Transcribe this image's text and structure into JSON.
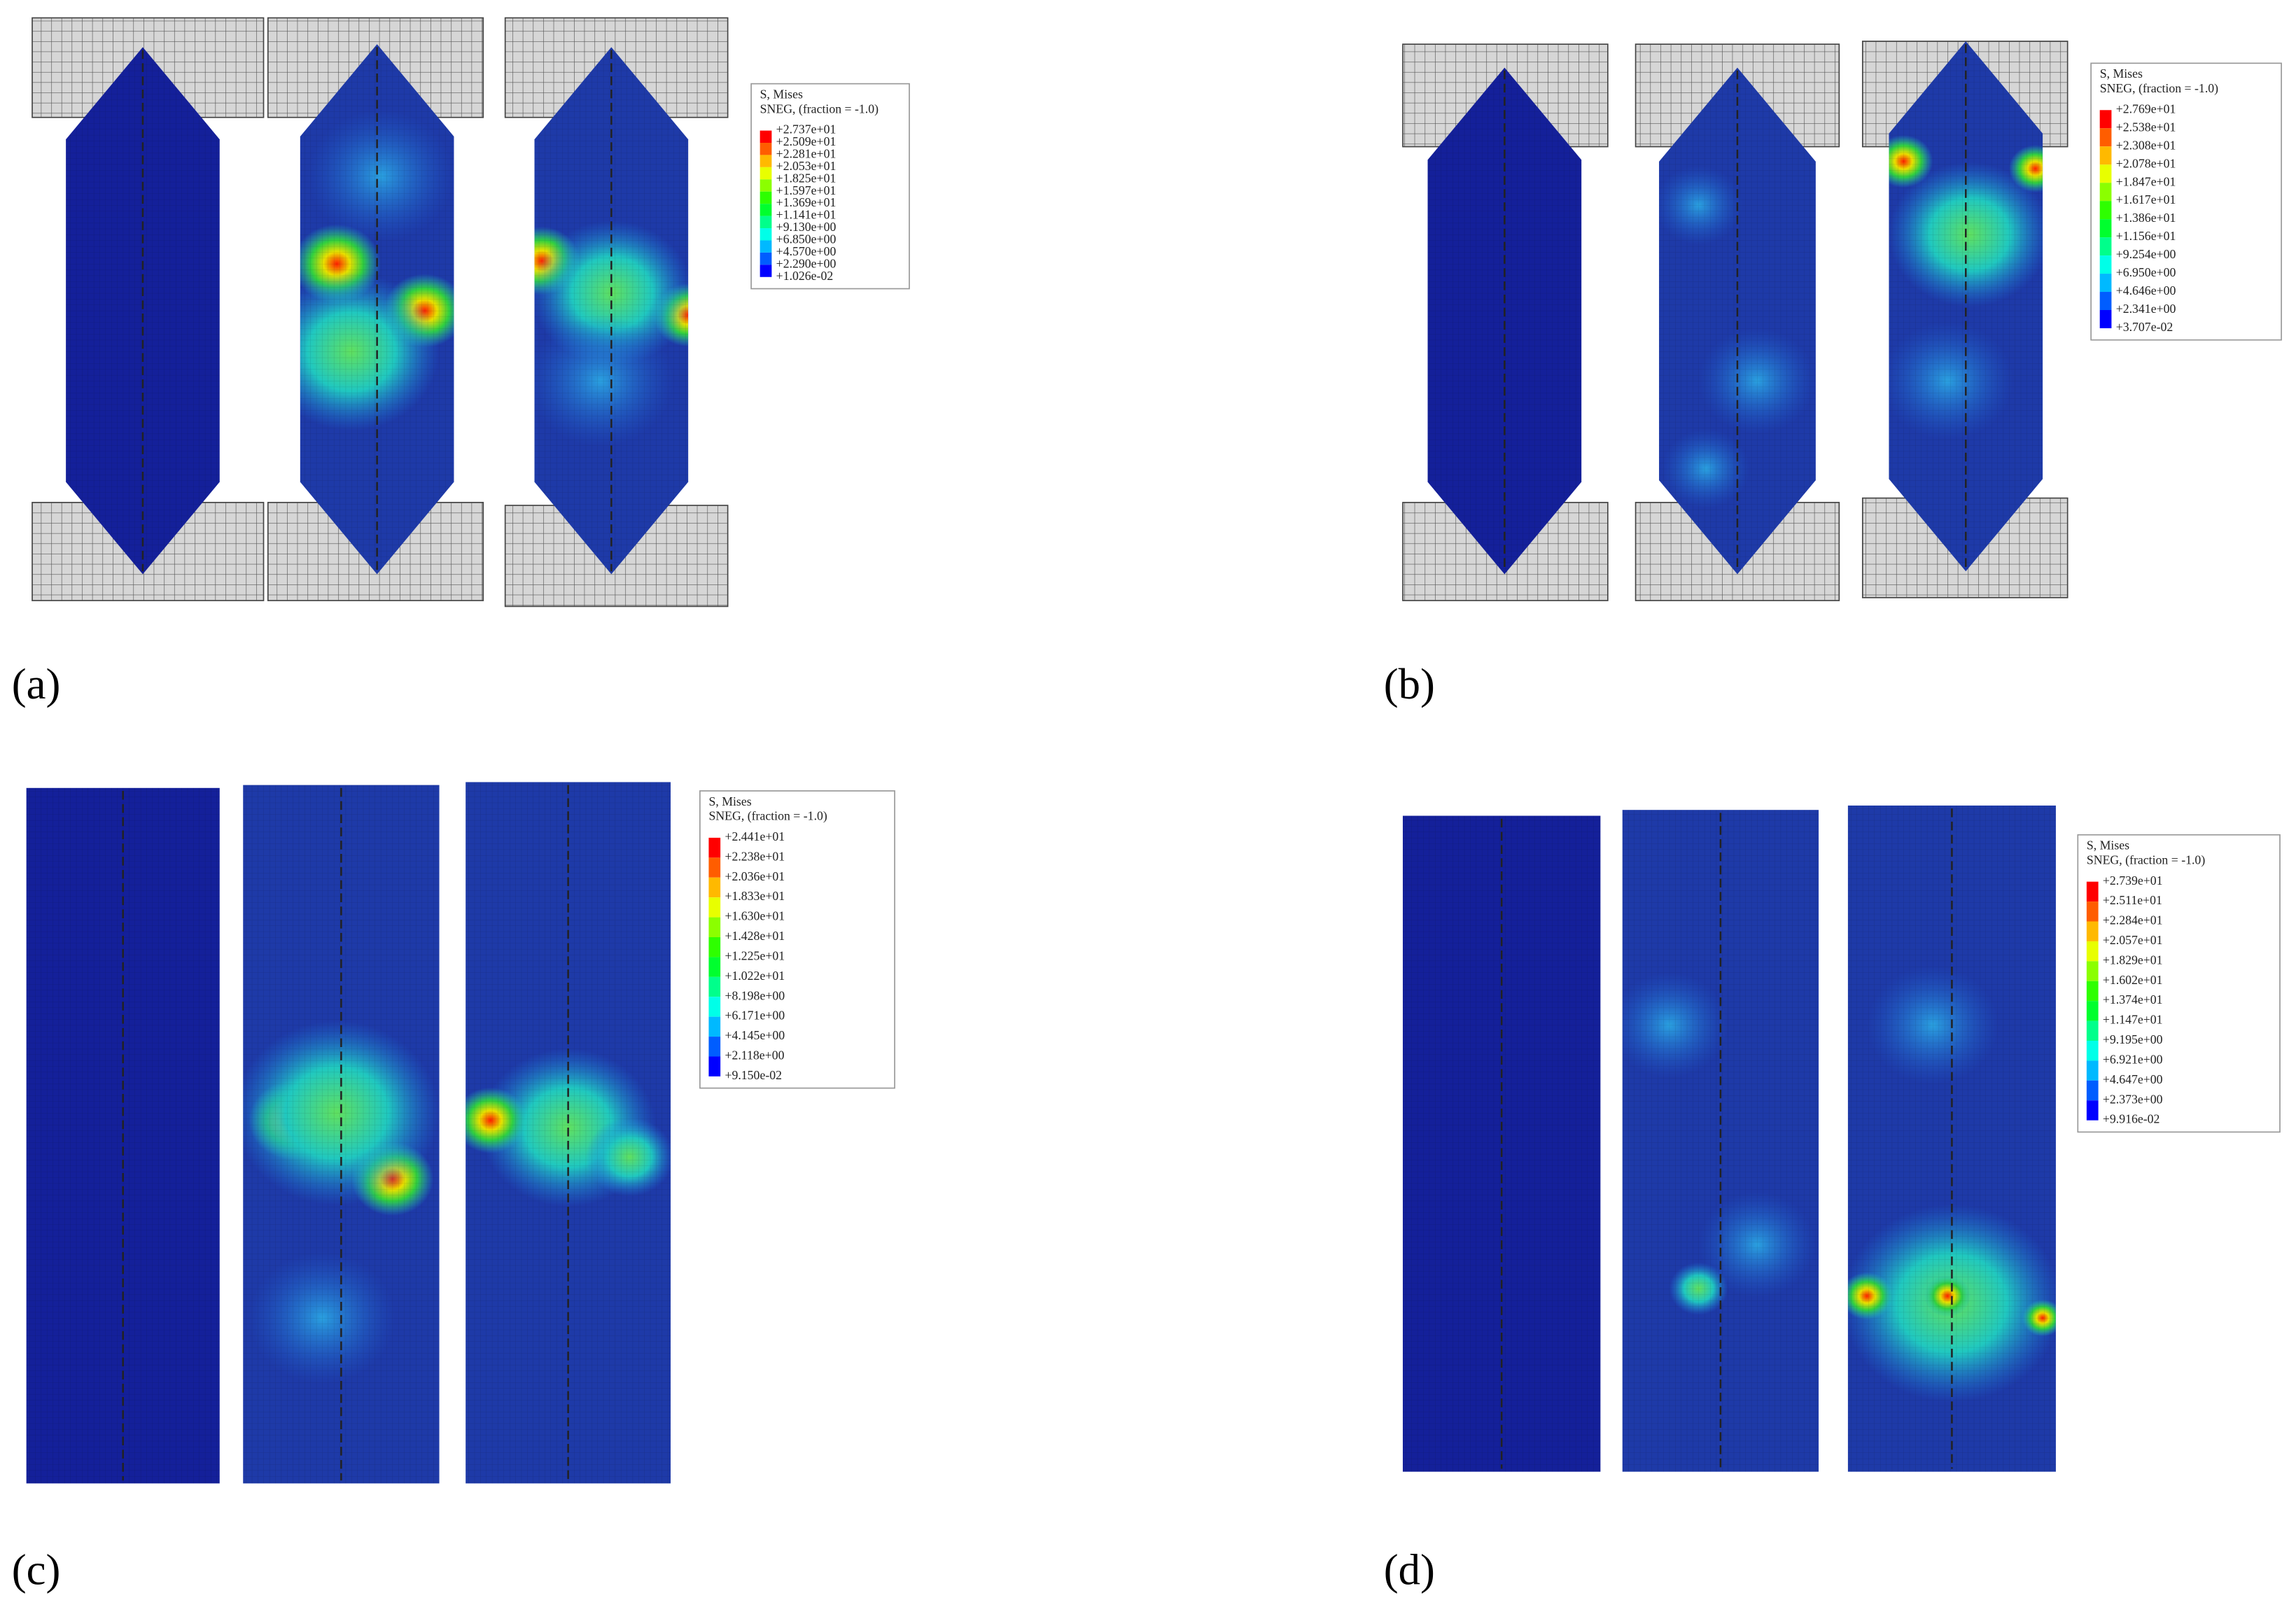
{
  "panels": [
    {
      "label": "(a)",
      "legend": {
        "title": "S, Mises",
        "subtitle": "SNEG, (fraction = -1.0)",
        "values": [
          "+2.737e+01",
          "+2.509e+01",
          "+2.281e+01",
          "+2.053e+01",
          "+1.825e+01",
          "+1.597e+01",
          "+1.369e+01",
          "+1.141e+01",
          "+9.130e+00",
          "+6.850e+00",
          "+4.570e+00",
          "+2.290e+00",
          "+1.026e-02"
        ]
      }
    },
    {
      "label": "(b)",
      "legend": {
        "title": "S, Mises",
        "subtitle": "SNEG, (fraction = -1.0)",
        "values": [
          "+2.769e+01",
          "+2.538e+01",
          "+2.308e+01",
          "+2.078e+01",
          "+1.847e+01",
          "+1.617e+01",
          "+1.386e+01",
          "+1.156e+01",
          "+9.254e+00",
          "+6.950e+00",
          "+4.646e+00",
          "+2.341e+00",
          "+3.707e-02"
        ]
      }
    },
    {
      "label": "(c)",
      "legend": {
        "title": "S, Mises",
        "subtitle": "SNEG, (fraction = -1.0)",
        "values": [
          "+2.441e+01",
          "+2.238e+01",
          "+2.036e+01",
          "+1.833e+01",
          "+1.630e+01",
          "+1.428e+01",
          "+1.225e+01",
          "+1.022e+01",
          "+8.198e+00",
          "+6.171e+00",
          "+4.145e+00",
          "+2.118e+00",
          "+9.150e-02"
        ]
      }
    },
    {
      "label": "(d)",
      "legend": {
        "title": "S, Mises",
        "subtitle": "SNEG, (fraction = -1.0)",
        "values": [
          "+2.739e+01",
          "+2.511e+01",
          "+2.284e+01",
          "+2.057e+01",
          "+1.829e+01",
          "+1.602e+01",
          "+1.374e+01",
          "+1.147e+01",
          "+9.195e+00",
          "+6.921e+00",
          "+4.647e+00",
          "+2.373e+00",
          "+9.916e-02"
        ]
      }
    }
  ]
}
